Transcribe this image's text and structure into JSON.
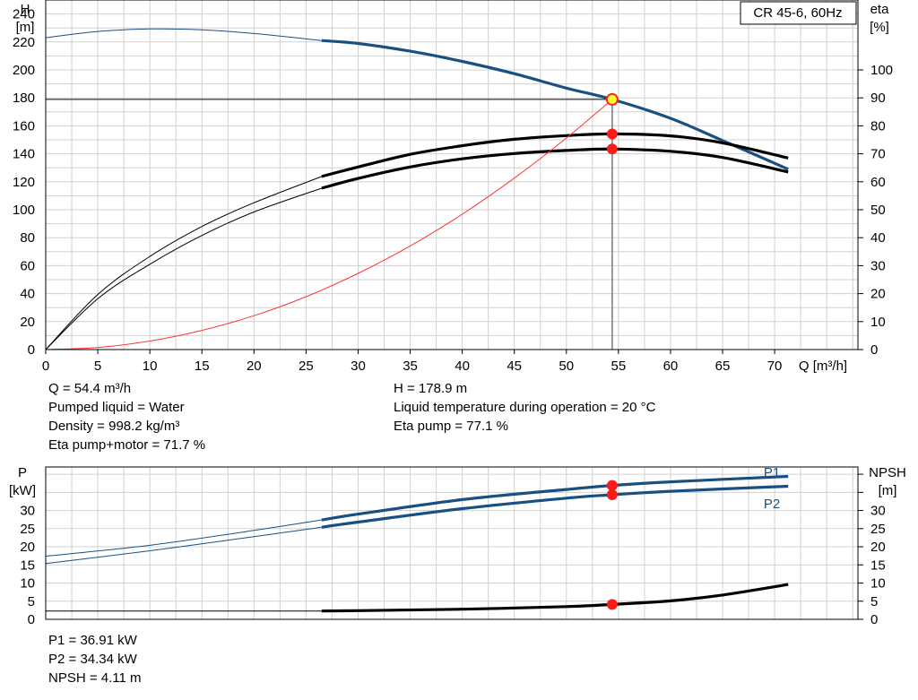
{
  "chart_data": [
    {
      "type": "line",
      "title": "CR 45-6, 60Hz",
      "xlabel": "Q [m³/h]",
      "ylabel": "H",
      "ylabel_unit": "[m]",
      "y2label": "eta",
      "y2label_unit": "[%]",
      "xlim": [
        0,
        78
      ],
      "xticks": [
        0,
        5,
        10,
        15,
        20,
        25,
        30,
        35,
        40,
        45,
        50,
        55,
        60,
        65,
        70
      ],
      "ylim": [
        0,
        250
      ],
      "yticks": [
        0,
        20,
        40,
        60,
        80,
        100,
        120,
        140,
        160,
        180,
        200,
        220,
        240
      ],
      "y2lim": [
        0,
        125
      ],
      "y2ticks": [
        0,
        10,
        20,
        30,
        40,
        50,
        60,
        70,
        80,
        90,
        100
      ],
      "grid": true,
      "series": [
        {
          "key": "H",
          "axis": "left",
          "color": "#1a4f82",
          "x": [
            0,
            5,
            10,
            15,
            20,
            26.5,
            30,
            35,
            40,
            45,
            50,
            54.4,
            60,
            65,
            71.3
          ],
          "y": [
            223,
            227.5,
            229.3,
            228.7,
            226,
            221,
            218.9,
            213.4,
            206.1,
            197.3,
            187,
            178.9,
            165.4,
            149.5,
            129
          ],
          "split_x": 26.5
        },
        {
          "key": "eta-pump",
          "axis": "right",
          "color": "#000000",
          "x": [
            0,
            5,
            10,
            15,
            20,
            26.5,
            30,
            35,
            40,
            45,
            50,
            54.4,
            60,
            65,
            71.3
          ],
          "y": [
            0,
            19.7,
            33.3,
            44,
            52.5,
            61.9,
            65.3,
            69.8,
            72.9,
            75.2,
            76.5,
            77.1,
            76.4,
            73.9,
            68.5
          ],
          "split_x": 26.5
        },
        {
          "key": "eta-pump-motor",
          "axis": "right",
          "color": "#000000",
          "x": [
            0,
            5,
            10,
            15,
            20,
            26.5,
            30,
            35,
            40,
            45,
            50,
            54.4,
            60,
            65,
            71.3
          ],
          "y": [
            0,
            18.2,
            30.5,
            40.8,
            49.2,
            57.7,
            61.2,
            65.3,
            68.2,
            70.1,
            71.2,
            71.7,
            70.9,
            68.7,
            63.5
          ],
          "split_x": 26.5
        },
        {
          "key": "system",
          "axis": "left",
          "color": "#ff3333",
          "x": [
            0,
            5,
            10,
            15,
            20,
            25,
            30,
            35,
            40,
            45,
            50,
            54.4
          ],
          "y": [
            0,
            1.5,
            6.1,
            13.7,
            24.2,
            37.8,
            54.5,
            74.1,
            96.8,
            122.6,
            151.3,
            178.9
          ]
        }
      ],
      "duty_point": {
        "x": 54.4,
        "H": 178.9,
        "eta_pump": 77.1,
        "eta_pump_motor": 71.7
      }
    },
    {
      "type": "line",
      "ylabel": "P",
      "ylabel_unit": "[kW]",
      "y2label": "NPSH",
      "y2label_unit": "[m]",
      "xlim": [
        0,
        78
      ],
      "ylim": [
        0,
        42
      ],
      "yticks": [
        0,
        5,
        10,
        15,
        20,
        25,
        30
      ],
      "y2lim": [
        0,
        42
      ],
      "y2ticks": [
        0,
        5,
        10,
        15,
        20,
        25,
        30
      ],
      "grid": true,
      "series": [
        {
          "name": "P1",
          "axis": "left",
          "color": "#1a4f82",
          "x": [
            0,
            10,
            20,
            26.5,
            30,
            40,
            50,
            54.4,
            60,
            71.3
          ],
          "y": [
            17.4,
            20.4,
            24.5,
            27.4,
            29,
            33,
            35.8,
            36.91,
            37.9,
            39.4
          ],
          "split_x": 26.5
        },
        {
          "name": "P2",
          "axis": "left",
          "color": "#1a4f82",
          "x": [
            0,
            10,
            20,
            26.5,
            30,
            40,
            50,
            54.4,
            60,
            71.3
          ],
          "y": [
            15.4,
            18.9,
            22.8,
            25.4,
            26.8,
            30.5,
            33.4,
            34.34,
            35.3,
            36.7
          ],
          "split_x": 26.5
        },
        {
          "key": "NPSH",
          "axis": "right",
          "color": "#000000",
          "x": [
            0,
            26.5,
            30,
            40,
            50,
            54.4,
            60,
            65,
            71.3
          ],
          "y": [
            2.3,
            2.3,
            2.4,
            2.8,
            3.5,
            4.11,
            5.1,
            6.7,
            9.6
          ],
          "split_x": 26.5
        }
      ],
      "duty_point": {
        "x": 54.4,
        "P1": 36.91,
        "P2": 34.34,
        "NPSH": 4.11
      }
    }
  ],
  "info_top_left": [
    "Q = 54.4 m³/h",
    "Pumped liquid = Water",
    "Density = 998.2 kg/m³",
    "Eta pump+motor = 71.7 %"
  ],
  "info_top_right": [
    "H = 178.9 m",
    "Liquid temperature during operation = 20 °C",
    "Eta pump = 77.1 %"
  ],
  "info_bottom": [
    "P1 = 36.91 kW",
    "P2 = 34.34 kW",
    "NPSH = 4.11 m"
  ]
}
